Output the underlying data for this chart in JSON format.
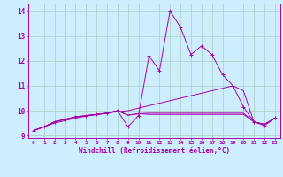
{
  "title": "",
  "xlabel": "Windchill (Refroidissement éolien,°C)",
  "bg_color": "#cceeff",
  "grid_color": "#aaccbb",
  "line_color": "#aa00aa",
  "xlim": [
    -0.5,
    23.5
  ],
  "ylim": [
    8.9,
    14.3
  ],
  "yticks": [
    9,
    10,
    11,
    12,
    13,
    14
  ],
  "xticks": [
    0,
    1,
    2,
    3,
    4,
    5,
    6,
    7,
    8,
    9,
    10,
    11,
    12,
    13,
    14,
    15,
    16,
    17,
    18,
    19,
    20,
    21,
    22,
    23
  ],
  "series_main": [
    9.2,
    9.35,
    9.55,
    9.65,
    9.75,
    9.8,
    9.85,
    9.9,
    10.0,
    9.35,
    9.8,
    12.2,
    11.6,
    14.0,
    13.35,
    12.25,
    12.6,
    12.25,
    11.45,
    11.0,
    10.15,
    9.55,
    9.4,
    9.7
  ],
  "series_linear": [
    9.2,
    9.35,
    9.5,
    9.6,
    9.7,
    9.78,
    9.84,
    9.9,
    9.96,
    10.0,
    10.1,
    10.2,
    10.3,
    10.4,
    10.5,
    10.6,
    10.7,
    10.8,
    10.9,
    11.0,
    10.8,
    9.55,
    9.45,
    9.7
  ],
  "series_flat1": [
    9.2,
    9.35,
    9.55,
    9.65,
    9.75,
    9.8,
    9.85,
    9.9,
    10.0,
    9.82,
    9.88,
    9.9,
    9.9,
    9.9,
    9.9,
    9.9,
    9.9,
    9.9,
    9.9,
    9.9,
    9.9,
    9.55,
    9.45,
    9.7
  ],
  "series_flat2": [
    9.2,
    9.35,
    9.55,
    9.65,
    9.75,
    9.8,
    9.85,
    9.9,
    10.0,
    9.82,
    9.88,
    9.85,
    9.85,
    9.85,
    9.85,
    9.85,
    9.85,
    9.85,
    9.85,
    9.85,
    9.85,
    9.55,
    9.45,
    9.7
  ]
}
